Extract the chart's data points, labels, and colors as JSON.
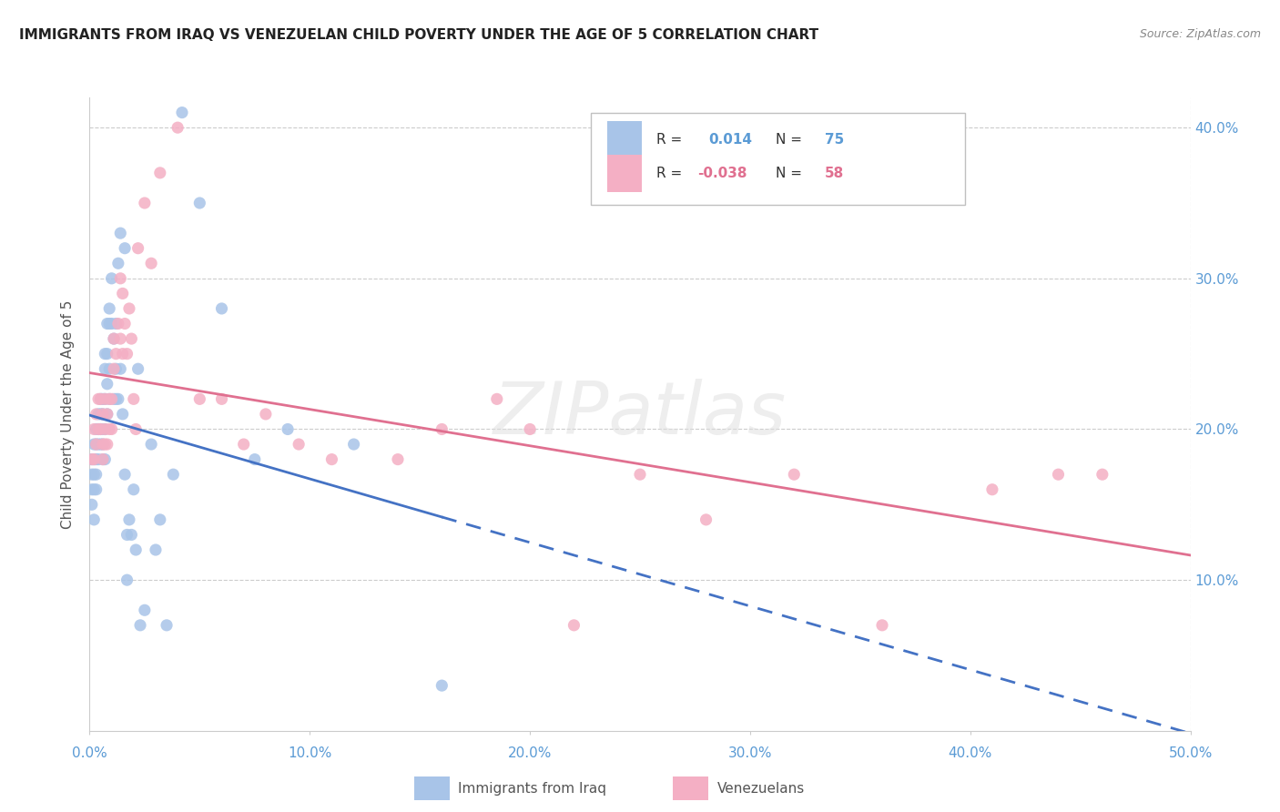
{
  "title": "IMMIGRANTS FROM IRAQ VS VENEZUELAN CHILD POVERTY UNDER THE AGE OF 5 CORRELATION CHART",
  "source": "Source: ZipAtlas.com",
  "ylabel": "Child Poverty Under the Age of 5",
  "x_min": 0.0,
  "x_max": 0.5,
  "y_min": 0.0,
  "y_max": 0.42,
  "x_ticks": [
    0.0,
    0.1,
    0.2,
    0.3,
    0.4,
    0.5
  ],
  "x_tick_labels": [
    "0.0%",
    "10.0%",
    "20.0%",
    "30.0%",
    "40.0%",
    "50.0%"
  ],
  "y_ticks": [
    0.1,
    0.2,
    0.3,
    0.4
  ],
  "y_tick_labels": [
    "10.0%",
    "20.0%",
    "30.0%",
    "40.0%"
  ],
  "legend_R1": "0.014",
  "legend_N1": "75",
  "legend_R2": "-0.038",
  "legend_N2": "58",
  "legend_label1": "Immigrants from Iraq",
  "legend_label2": "Venezuelans",
  "blue_color": "#a8c4e8",
  "pink_color": "#f4afc4",
  "blue_line_color": "#4472c4",
  "pink_line_color": "#e07090",
  "watermark": "ZIPatlas",
  "blue_scatter_x": [
    0.001,
    0.001,
    0.001,
    0.001,
    0.002,
    0.002,
    0.002,
    0.002,
    0.002,
    0.003,
    0.003,
    0.003,
    0.003,
    0.003,
    0.004,
    0.004,
    0.004,
    0.004,
    0.005,
    0.005,
    0.005,
    0.005,
    0.006,
    0.006,
    0.006,
    0.006,
    0.006,
    0.007,
    0.007,
    0.007,
    0.007,
    0.007,
    0.008,
    0.008,
    0.008,
    0.008,
    0.009,
    0.009,
    0.009,
    0.009,
    0.01,
    0.01,
    0.011,
    0.011,
    0.012,
    0.012,
    0.012,
    0.013,
    0.013,
    0.014,
    0.014,
    0.015,
    0.016,
    0.016,
    0.017,
    0.017,
    0.018,
    0.019,
    0.02,
    0.021,
    0.022,
    0.023,
    0.025,
    0.028,
    0.03,
    0.032,
    0.035,
    0.038,
    0.042,
    0.05,
    0.06,
    0.075,
    0.09,
    0.12,
    0.16
  ],
  "blue_scatter_y": [
    0.18,
    0.17,
    0.16,
    0.15,
    0.19,
    0.18,
    0.17,
    0.16,
    0.14,
    0.2,
    0.19,
    0.18,
    0.17,
    0.16,
    0.21,
    0.2,
    0.19,
    0.18,
    0.22,
    0.21,
    0.2,
    0.19,
    0.22,
    0.21,
    0.2,
    0.19,
    0.18,
    0.25,
    0.24,
    0.22,
    0.2,
    0.18,
    0.27,
    0.25,
    0.23,
    0.21,
    0.28,
    0.27,
    0.24,
    0.22,
    0.3,
    0.27,
    0.26,
    0.22,
    0.27,
    0.24,
    0.22,
    0.31,
    0.22,
    0.33,
    0.24,
    0.21,
    0.32,
    0.17,
    0.13,
    0.1,
    0.14,
    0.13,
    0.16,
    0.12,
    0.24,
    0.07,
    0.08,
    0.19,
    0.12,
    0.14,
    0.07,
    0.17,
    0.41,
    0.35,
    0.28,
    0.18,
    0.2,
    0.19,
    0.03
  ],
  "pink_scatter_x": [
    0.001,
    0.002,
    0.002,
    0.003,
    0.003,
    0.004,
    0.004,
    0.005,
    0.005,
    0.006,
    0.006,
    0.006,
    0.007,
    0.007,
    0.007,
    0.008,
    0.008,
    0.009,
    0.009,
    0.01,
    0.01,
    0.011,
    0.011,
    0.012,
    0.013,
    0.014,
    0.014,
    0.015,
    0.015,
    0.016,
    0.017,
    0.018,
    0.019,
    0.02,
    0.021,
    0.022,
    0.025,
    0.028,
    0.032,
    0.04,
    0.05,
    0.06,
    0.07,
    0.08,
    0.095,
    0.11,
    0.14,
    0.16,
    0.185,
    0.2,
    0.22,
    0.25,
    0.28,
    0.32,
    0.36,
    0.41,
    0.44,
    0.46
  ],
  "pink_scatter_y": [
    0.18,
    0.2,
    0.18,
    0.21,
    0.19,
    0.22,
    0.2,
    0.22,
    0.2,
    0.21,
    0.19,
    0.18,
    0.22,
    0.2,
    0.19,
    0.21,
    0.19,
    0.22,
    0.2,
    0.22,
    0.2,
    0.26,
    0.24,
    0.25,
    0.27,
    0.3,
    0.26,
    0.29,
    0.25,
    0.27,
    0.25,
    0.28,
    0.26,
    0.22,
    0.2,
    0.32,
    0.35,
    0.31,
    0.37,
    0.4,
    0.22,
    0.22,
    0.19,
    0.21,
    0.19,
    0.18,
    0.18,
    0.2,
    0.22,
    0.2,
    0.07,
    0.17,
    0.14,
    0.17,
    0.07,
    0.16,
    0.17,
    0.17
  ]
}
